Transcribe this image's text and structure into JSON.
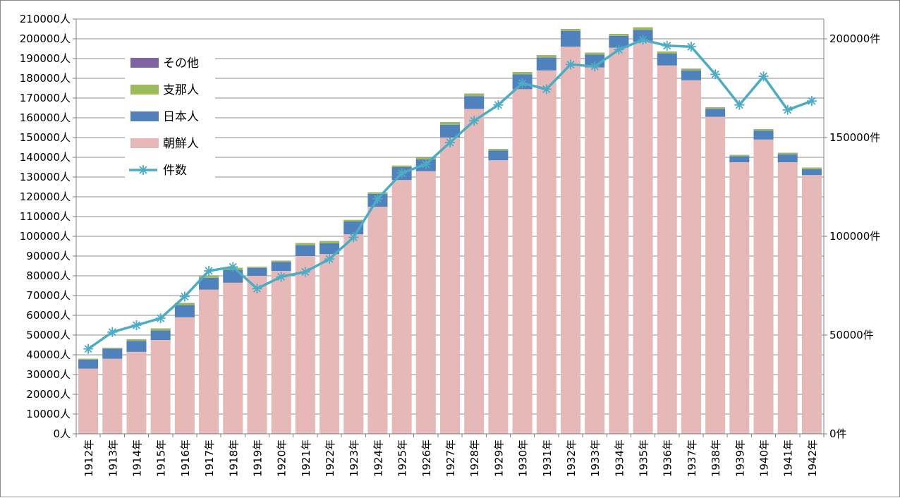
{
  "chart_data": {
    "type": "bar",
    "stacked": true,
    "title": "",
    "categories": [
      "1912年",
      "1913年",
      "1914年",
      "1915年",
      "1916年",
      "1917年",
      "1918年",
      "1919年",
      "1920年",
      "1921年",
      "1922年",
      "1923年",
      "1924年",
      "1925年",
      "1926年",
      "1927年",
      "1928年",
      "1929年",
      "1930年",
      "1931年",
      "1932年",
      "1933年",
      "1934年",
      "1935年",
      "1936年",
      "1937年",
      "1938年",
      "1939年",
      "1940年",
      "1941年",
      "1942年"
    ],
    "series": [
      {
        "name": "朝鮮人",
        "color": "#e6b9b8",
        "axis": "left",
        "values": [
          33000,
          38000,
          41500,
          47500,
          59000,
          73000,
          76500,
          80000,
          82500,
          90000,
          91000,
          101000,
          115000,
          128500,
          133000,
          150000,
          164500,
          138500,
          174500,
          184000,
          196000,
          185500,
          195500,
          198500,
          186500,
          179000,
          160500,
          137500,
          149000,
          137500,
          131000
        ]
      },
      {
        "name": "日本人",
        "color": "#4f81bd",
        "axis": "left",
        "values": [
          4500,
          5000,
          5500,
          4800,
          6200,
          6000,
          6500,
          4000,
          4500,
          5500,
          5500,
          6500,
          6500,
          6500,
          6000,
          6500,
          6500,
          5000,
          7500,
          6500,
          8000,
          6500,
          6000,
          6000,
          6000,
          5000,
          4000,
          3000,
          4500,
          4000,
          3000
        ]
      },
      {
        "name": "支那人",
        "color": "#9bbb59",
        "axis": "left",
        "values": [
          400,
          500,
          800,
          1000,
          1000,
          1000,
          1000,
          500,
          600,
          1000,
          1000,
          700,
          700,
          700,
          700,
          1200,
          1200,
          600,
          1100,
          1100,
          900,
          900,
          900,
          1200,
          1000,
          800,
          700,
          600,
          700,
          700,
          700
        ]
      },
      {
        "name": "その他",
        "color": "#8064a2",
        "axis": "left",
        "values": [
          100,
          100,
          100,
          100,
          100,
          100,
          100,
          100,
          100,
          100,
          100,
          100,
          100,
          100,
          100,
          100,
          100,
          100,
          100,
          100,
          100,
          100,
          100,
          100,
          100,
          100,
          100,
          100,
          100,
          100,
          100
        ]
      },
      {
        "name": "件数",
        "type": "line",
        "color": "#4bacc6",
        "axis": "right",
        "values": [
          43000,
          51500,
          55000,
          58500,
          69500,
          82500,
          84500,
          73500,
          79500,
          82000,
          88500,
          99500,
          119000,
          132000,
          136500,
          147500,
          158500,
          166500,
          177500,
          174500,
          187000,
          186000,
          194500,
          199500,
          196500,
          196000,
          182000,
          166500,
          181000,
          164000,
          168500
        ]
      }
    ],
    "ylim_left": [
      0,
      210000
    ],
    "ylim_right": [
      0,
      210000
    ],
    "yticks_left": [
      "0人",
      "10000人",
      "20000人",
      "30000人",
      "40000人",
      "50000人",
      "60000人",
      "70000人",
      "80000人",
      "90000人",
      "100000人",
      "110000人",
      "120000人",
      "130000人",
      "140000人",
      "150000人",
      "160000人",
      "170000人",
      "180000人",
      "190000人",
      "200000人",
      "210000人"
    ],
    "yticks_right": [
      "0件",
      "50000件",
      "100000件",
      "150000件",
      "200000件"
    ],
    "legend": [
      "その他",
      "支那人",
      "日本人",
      "朝鮮人",
      "件数"
    ],
    "legend_position": "top-left",
    "grid": true
  }
}
